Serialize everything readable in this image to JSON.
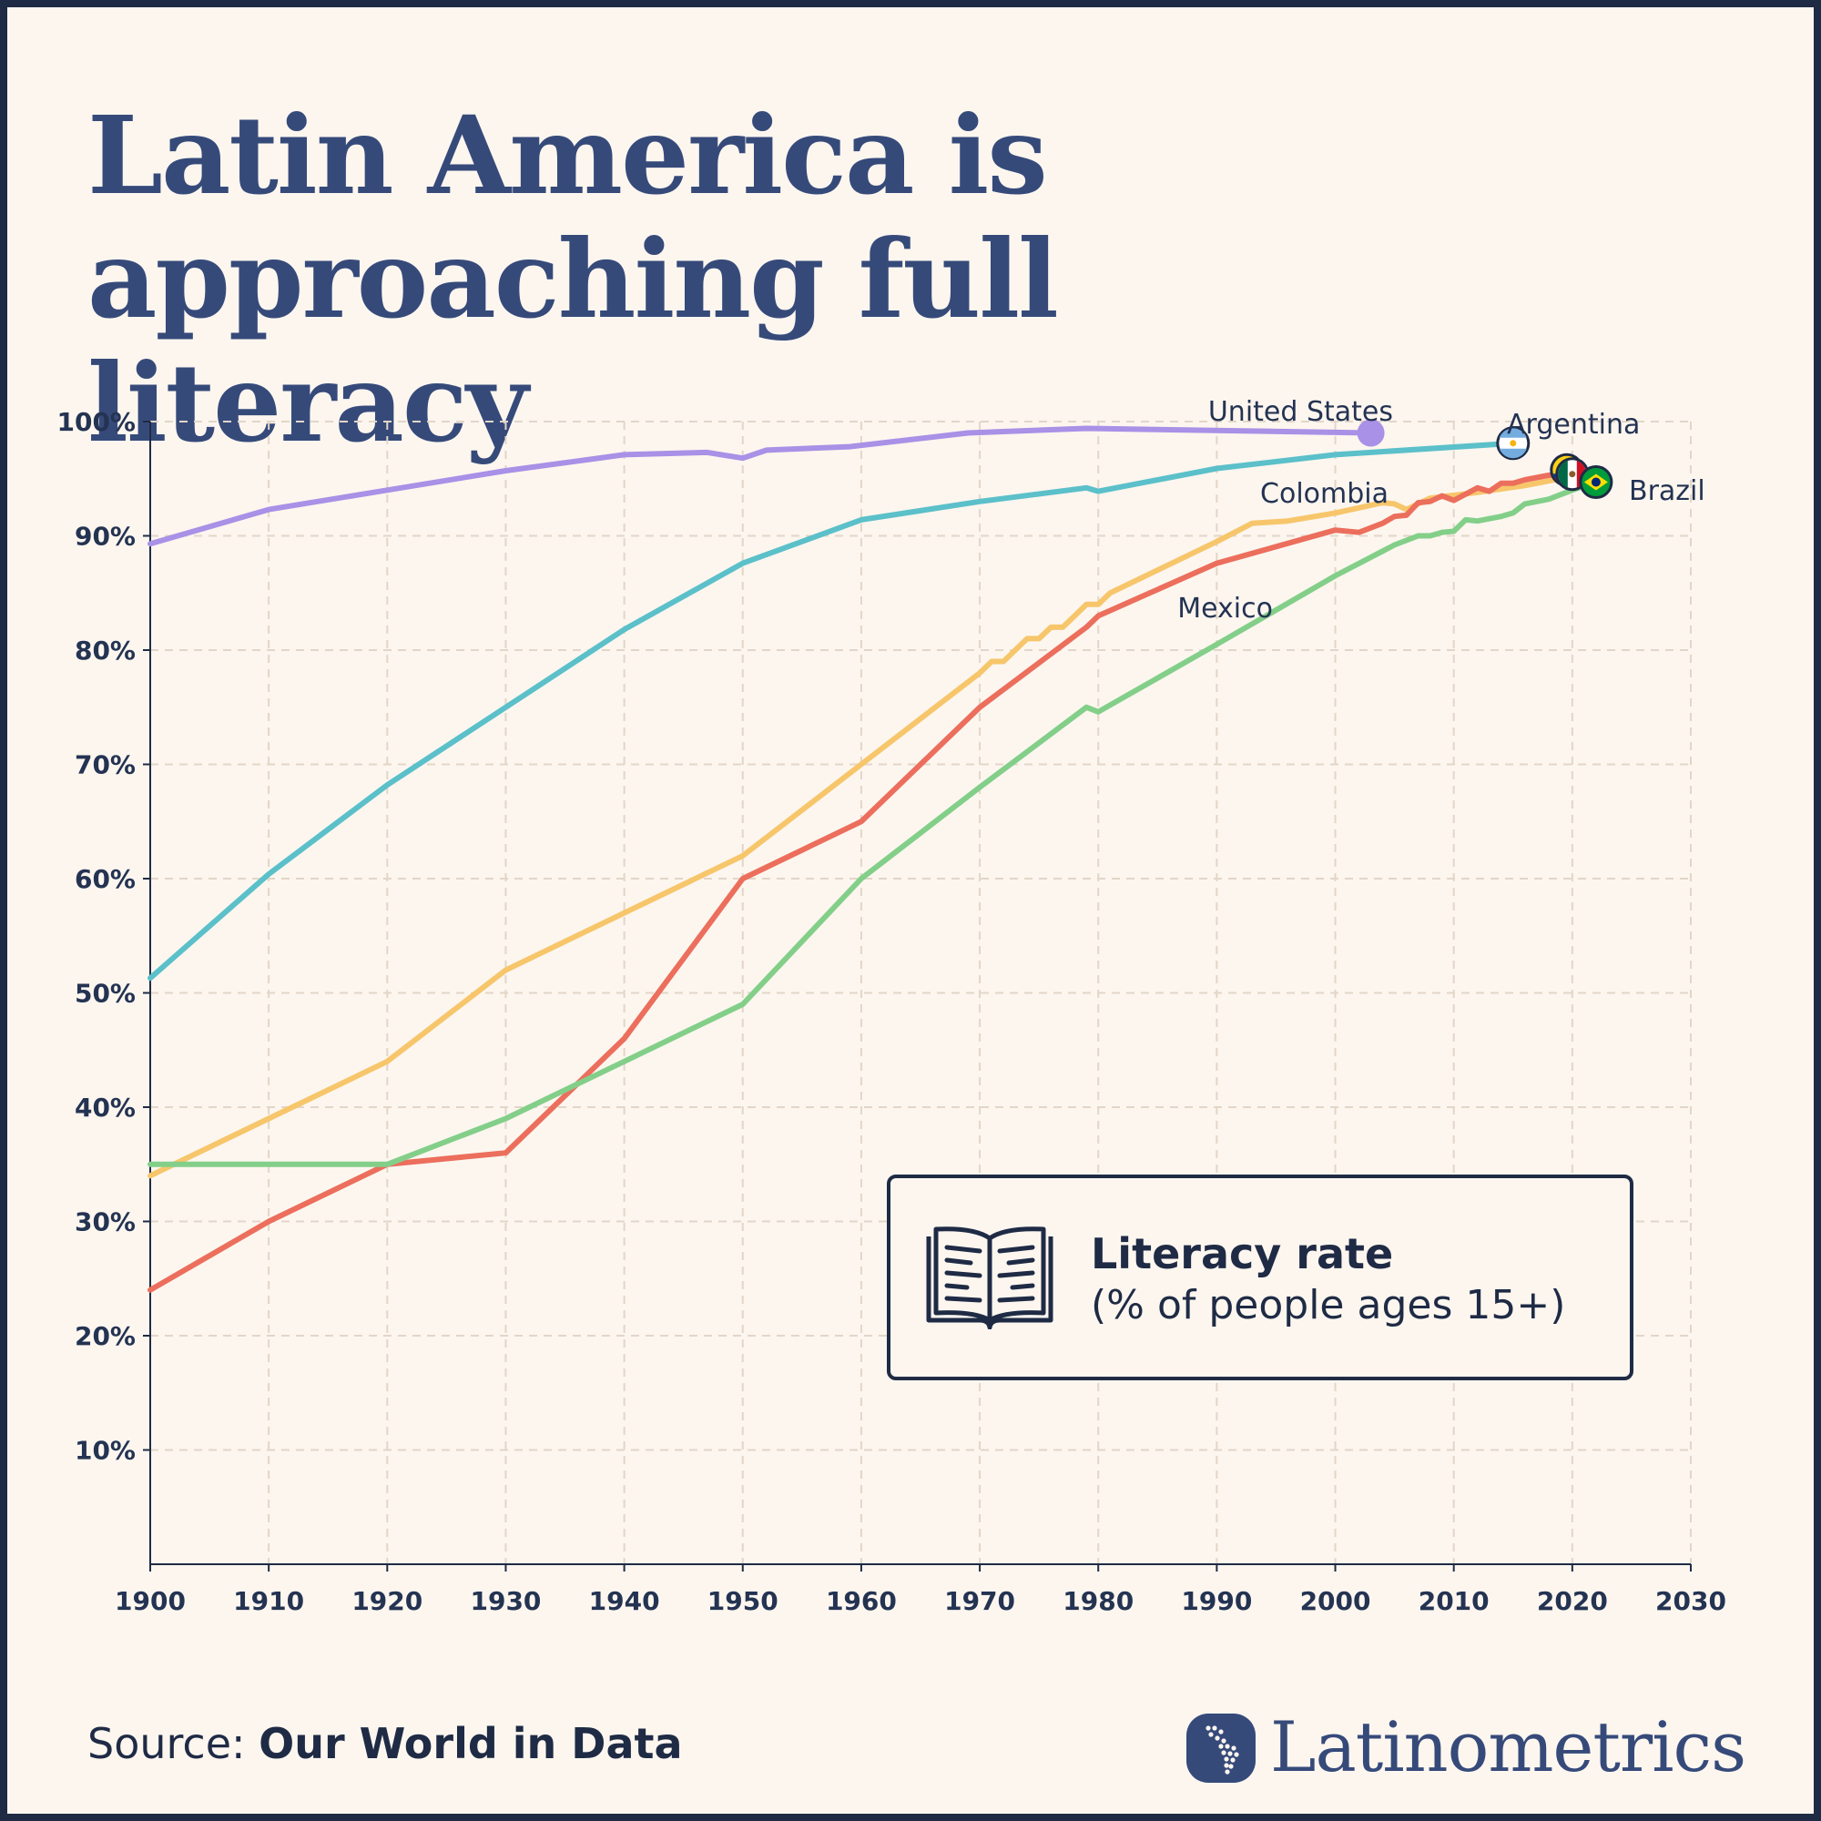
{
  "header": {
    "title_line1": "Latin America is",
    "title_line2": "approaching full literacy"
  },
  "legend": {
    "title": "Literacy rate",
    "subtitle": "(% of people ages 15+)"
  },
  "footer": {
    "source_prefix": "Source: ",
    "source_name": "Our World in Data",
    "brand": "Latinometrics"
  },
  "chart_data": {
    "type": "line",
    "title": "Latin America is approaching full literacy",
    "ylabel": "Literacy rate (% of people ages 15+)",
    "xlabel": "",
    "xlim": [
      1900,
      2030
    ],
    "ylim": [
      0,
      100
    ],
    "x_ticks": [
      "1900",
      "1910",
      "1920",
      "1930",
      "1940",
      "1950",
      "1960",
      "1970",
      "1980",
      "1990",
      "2000",
      "2010",
      "2020",
      "2030"
    ],
    "y_ticks": [
      "10%",
      "20%",
      "30%",
      "40%",
      "50%",
      "60%",
      "70%",
      "80%",
      "90%",
      "100%"
    ],
    "grid": true,
    "series": [
      {
        "name": "United States",
        "color": "#a891e6",
        "end_marker": "dot",
        "points": [
          [
            1900,
            89.3
          ],
          [
            1910,
            92.3
          ],
          [
            1920,
            94
          ],
          [
            1930,
            95.7
          ],
          [
            1940,
            97.1
          ],
          [
            1947,
            97.3
          ],
          [
            1950,
            96.8
          ],
          [
            1952,
            97.5
          ],
          [
            1959,
            97.8
          ],
          [
            1969,
            99
          ],
          [
            1979,
            99.4
          ],
          [
            2003,
            99
          ]
        ]
      },
      {
        "name": "Argentina",
        "color": "#5bc0c9",
        "end_marker": "flag-argentina",
        "points": [
          [
            1900,
            51.3
          ],
          [
            1910,
            60.4
          ],
          [
            1920,
            68.2
          ],
          [
            1930,
            75
          ],
          [
            1940,
            81.8
          ],
          [
            1950,
            87.6
          ],
          [
            1960,
            91.4
          ],
          [
            1970,
            93
          ],
          [
            1979,
            94.2
          ],
          [
            1980,
            93.9
          ],
          [
            1990,
            95.9
          ],
          [
            2000,
            97.1
          ],
          [
            2015,
            98.1
          ]
        ]
      },
      {
        "name": "Colombia",
        "color": "#f7c66b",
        "end_marker": "flag-colombia",
        "points": [
          [
            1900,
            34
          ],
          [
            1910,
            39
          ],
          [
            1920,
            44
          ],
          [
            1930,
            52
          ],
          [
            1940,
            57
          ],
          [
            1950,
            62
          ],
          [
            1960,
            70
          ],
          [
            1970,
            78
          ],
          [
            1971,
            79
          ],
          [
            1972,
            79
          ],
          [
            1974,
            81
          ],
          [
            1975,
            81
          ],
          [
            1976,
            82
          ],
          [
            1977,
            82
          ],
          [
            1978,
            83
          ],
          [
            1979,
            84
          ],
          [
            1980,
            84
          ],
          [
            1981,
            85
          ],
          [
            1985,
            87
          ],
          [
            1990,
            89.5
          ],
          [
            1993,
            91.1
          ],
          [
            1996,
            91.3
          ],
          [
            2000,
            92
          ],
          [
            2004,
            92.9
          ],
          [
            2005,
            92.8
          ],
          [
            2006,
            92.3
          ],
          [
            2008,
            93.3
          ],
          [
            2012,
            93.8
          ],
          [
            2016,
            94.4
          ],
          [
            2020,
            95.2
          ]
        ]
      },
      {
        "name": "Mexico",
        "color": "#ec6e5c",
        "end_marker": "flag-mexico",
        "points": [
          [
            1900,
            24
          ],
          [
            1910,
            30
          ],
          [
            1920,
            35
          ],
          [
            1930,
            36
          ],
          [
            1940,
            46
          ],
          [
            1950,
            60
          ],
          [
            1960,
            65
          ],
          [
            1970,
            75
          ],
          [
            1979,
            82
          ],
          [
            1980,
            83
          ],
          [
            1990,
            87.6
          ],
          [
            2000,
            90.5
          ],
          [
            2002,
            90.3
          ],
          [
            2004,
            91.1
          ],
          [
            2005,
            91.7
          ],
          [
            2006,
            91.8
          ],
          [
            2007,
            92.9
          ],
          [
            2008,
            93
          ],
          [
            2009,
            93.5
          ],
          [
            2010,
            93.1
          ],
          [
            2012,
            94.2
          ],
          [
            2013,
            93.9
          ],
          [
            2014,
            94.6
          ],
          [
            2015,
            94.6
          ],
          [
            2016,
            94.9
          ],
          [
            2018,
            95.3
          ],
          [
            2020,
            95.4
          ]
        ]
      },
      {
        "name": "Brazil",
        "color": "#83cf89",
        "end_marker": "flag-brazil",
        "points": [
          [
            1900,
            35
          ],
          [
            1910,
            35
          ],
          [
            1920,
            35
          ],
          [
            1930,
            39
          ],
          [
            1940,
            44
          ],
          [
            1950,
            49
          ],
          [
            1960,
            60
          ],
          [
            1970,
            68
          ],
          [
            1979,
            75
          ],
          [
            1980,
            74.6
          ],
          [
            1990,
            80.5
          ],
          [
            2000,
            86.5
          ],
          [
            2005,
            89.2
          ],
          [
            2007,
            90
          ],
          [
            2008,
            90
          ],
          [
            2009,
            90.3
          ],
          [
            2010,
            90.4
          ],
          [
            2011,
            91.4
          ],
          [
            2012,
            91.3
          ],
          [
            2014,
            91.7
          ],
          [
            2015,
            92
          ],
          [
            2016,
            92.8
          ],
          [
            2018,
            93.2
          ],
          [
            2020,
            94
          ],
          [
            2022,
            94.7
          ]
        ]
      }
    ]
  }
}
